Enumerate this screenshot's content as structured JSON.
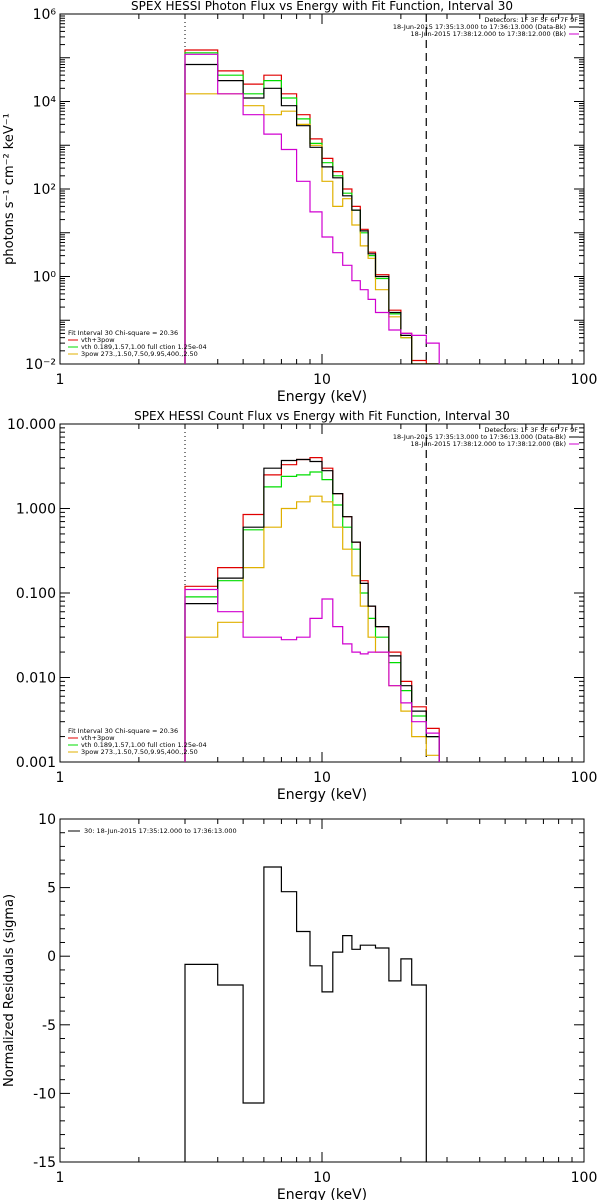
{
  "colors": {
    "black": "#000000",
    "red": "#e00000",
    "green": "#00dd00",
    "yellow": "#e0b000",
    "magenta": "#d000d0"
  },
  "chart_data": [
    {
      "type": "line",
      "title": "SPEX HESSI Photon Flux vs Energy with Fit Function, Interval 30",
      "xlabel": "Energy (keV)",
      "ylabel": "photons s⁻¹ cm⁻² keV⁻¹",
      "x_scale": "log",
      "y_scale": "log",
      "xlim": [
        1,
        100
      ],
      "ylim": [
        0.01,
        1000000
      ],
      "x_ticks": [
        "1",
        "10",
        "100"
      ],
      "y_ticks": [
        {
          "value": 0.01,
          "label": "10⁻²"
        },
        {
          "value": 1,
          "label": "10⁰"
        },
        {
          "value": 100,
          "label": "10²"
        },
        {
          "value": 10000,
          "label": "10⁴"
        },
        {
          "value": 1000000,
          "label": "10⁶"
        }
      ],
      "bin_edges": [
        3,
        3.5,
        4,
        4.5,
        5,
        5.5,
        6,
        6.5,
        7,
        7.5,
        8,
        8.5,
        9,
        10,
        11,
        12,
        13,
        14,
        15,
        16,
        18,
        20,
        22,
        25,
        28
      ],
      "ref_lines": {
        "dotted_x": 3,
        "dashed_x": 25
      },
      "legend_top": {
        "lines": [
          "Detectors: 1F 3F 5F 6F 7F 9F",
          "18-Jun-2015 17:35:13.000 to 17:36:13.000 (Data-Bk)",
          "18-Jun-2015 17:38:12.000 to 17:38:12.000 (Bk)"
        ],
        "colors": [
          "",
          "#000000",
          "#d000d0"
        ]
      },
      "legend_bottom": {
        "lines": [
          "Fit Interval 30   Chi-square = 20.36",
          "vth+3pow",
          "vth 0.189,1.57,1.00  full ction 1.25e-04",
          "3pow 273.,1.50,7.50,9.95,400.,2.50"
        ],
        "colors": [
          "",
          "#e00000",
          "#00dd00",
          "#e0b000"
        ]
      },
      "series": [
        {
          "color": "#000000",
          "values": [
            70000,
            70000,
            30000,
            30000,
            12000,
            12000,
            20000,
            20000,
            8000,
            8000,
            2800,
            2800,
            900,
            320,
            180,
            70,
            33,
            11,
            3.3,
            1.0,
            0.15,
            0.045,
            0.01,
            0.003
          ]
        },
        {
          "color": "#e00000",
          "values": [
            150000,
            150000,
            50000,
            50000,
            25000,
            25000,
            40000,
            40000,
            15000,
            15000,
            5000,
            5000,
            1400,
            500,
            250,
            100,
            40,
            12,
            3.6,
            1.1,
            0.17,
            0.05,
            0.012,
            0.004
          ]
        },
        {
          "color": "#00dd00",
          "values": [
            130000,
            130000,
            40000,
            40000,
            15000,
            15000,
            30000,
            30000,
            12000,
            12000,
            4000,
            4000,
            1100,
            400,
            200,
            80,
            33,
            10,
            3.0,
            0.9,
            0.14,
            0.04,
            0.009,
            0.003
          ]
        },
        {
          "color": "#e0b000",
          "values": [
            15000,
            15000,
            15000,
            15000,
            8000,
            8000,
            5000,
            5000,
            6000,
            6000,
            3000,
            3000,
            1000,
            150,
            40,
            60,
            15,
            5,
            2.6,
            0.5,
            0.12,
            0.04,
            0.009,
            0.003
          ]
        },
        {
          "color": "#d000d0",
          "values": [
            120000,
            120000,
            15000,
            15000,
            5000,
            5000,
            1800,
            1800,
            800,
            800,
            150,
            150,
            30,
            8,
            3.5,
            1.8,
            0.8,
            0.5,
            0.3,
            0.15,
            0.06,
            0.05,
            0.045,
            0.03
          ]
        }
      ]
    },
    {
      "type": "line",
      "title": "SPEX HESSI Count Flux vs Energy with Fit Function, Interval 30",
      "xlabel": "Energy (keV)",
      "ylabel": "",
      "x_scale": "log",
      "y_scale": "log",
      "xlim": [
        1,
        100
      ],
      "ylim": [
        0.001,
        10
      ],
      "x_ticks": [
        "1",
        "10",
        "100"
      ],
      "y_ticks": [
        {
          "value": 0.001,
          "label": "0.001"
        },
        {
          "value": 0.01,
          "label": "0.010"
        },
        {
          "value": 0.1,
          "label": "0.100"
        },
        {
          "value": 1,
          "label": "1.000"
        },
        {
          "value": 10,
          "label": "10.000"
        }
      ],
      "bin_edges": [
        3,
        4,
        5,
        6,
        7,
        8,
        9,
        10,
        11,
        12,
        13,
        14,
        15,
        16,
        18,
        20,
        22,
        25,
        28
      ],
      "ref_lines": {
        "dotted_x": 3,
        "dashed_x": 25
      },
      "legend_top": {
        "lines": [
          "Detectors: 1F 3F 5F 6F 7F 9F",
          "18-Jun-2015 17:35:13.000 to 17:36:13.000 (Data-Bk)",
          "18-Jun-2015 17:38:12.000 to 17:38:12.000 (Bk)"
        ],
        "colors": [
          "",
          "#000000",
          "#d000d0"
        ]
      },
      "legend_bottom": {
        "lines": [
          "Fit Interval 30   Chi-square = 20.36",
          "vth+3pow",
          "vth 0.189,1.57,1.00  full ction 1.25e-04",
          "3pow 273.,1.50,7.50,9.95,400.,2.50"
        ],
        "colors": [
          "",
          "#e00000",
          "#00dd00",
          "#e0b000"
        ]
      },
      "series": [
        {
          "color": "#000000",
          "values": [
            0.075,
            0.15,
            0.6,
            3.0,
            3.7,
            3.8,
            3.6,
            2.8,
            1.5,
            0.8,
            0.4,
            0.13,
            0.07,
            0.04,
            0.018,
            0.008,
            0.004,
            0.002
          ]
        },
        {
          "color": "#e00000",
          "values": [
            0.12,
            0.2,
            0.85,
            2.5,
            3.3,
            3.8,
            4.0,
            3.0,
            1.5,
            0.8,
            0.4,
            0.14,
            0.07,
            0.04,
            0.02,
            0.009,
            0.0045,
            0.0025
          ]
        },
        {
          "color": "#00dd00",
          "values": [
            0.09,
            0.14,
            0.56,
            1.8,
            2.4,
            2.5,
            2.7,
            2.2,
            1.1,
            0.6,
            0.33,
            0.1,
            0.05,
            0.03,
            0.015,
            0.007,
            0.0035,
            0.002
          ]
        },
        {
          "color": "#e0b000",
          "values": [
            0.03,
            0.045,
            0.2,
            0.6,
            1.0,
            1.2,
            1.4,
            1.2,
            0.6,
            0.33,
            0.16,
            0.07,
            0.03,
            0.02,
            0.008,
            0.004,
            0.002,
            0.0012
          ]
        },
        {
          "color": "#d000d0",
          "values": [
            0.11,
            0.06,
            0.03,
            0.03,
            0.028,
            0.03,
            0.05,
            0.085,
            0.04,
            0.025,
            0.02,
            0.019,
            0.02,
            0.02,
            0.008,
            0.005,
            0.003,
            0.0022
          ]
        }
      ]
    },
    {
      "type": "line",
      "title": "",
      "xlabel": "Energy (keV)",
      "ylabel": "Normalized Residuals (sigma)",
      "x_scale": "log",
      "y_scale": "linear",
      "xlim": [
        1,
        100
      ],
      "ylim": [
        -15,
        10
      ],
      "x_ticks": [
        "1",
        "10",
        "100"
      ],
      "y_ticks": [
        {
          "value": 10,
          "label": "10"
        },
        {
          "value": 5,
          "label": "5"
        },
        {
          "value": 0,
          "label": "0"
        },
        {
          "value": -5,
          "label": "-5"
        },
        {
          "value": -10,
          "label": "-10"
        },
        {
          "value": -15,
          "label": "-15"
        }
      ],
      "bin_edges": [
        3,
        4,
        5,
        6,
        7,
        8,
        9,
        10,
        11,
        12,
        13,
        14,
        15,
        16,
        18,
        20,
        22,
        25
      ],
      "legend_top": {
        "lines": [
          "30: 18-Jun-2015 17:35:12.000 to 17:36:13.000"
        ],
        "colors": [
          "#000000"
        ]
      },
      "series": [
        {
          "color": "#000000",
          "values": [
            -0.6,
            -2.1,
            -10.7,
            6.5,
            4.7,
            1.8,
            -0.7,
            -2.6,
            0.3,
            1.5,
            0.5,
            0.8,
            0.8,
            0.6,
            -1.8,
            -0.2,
            -2.1
          ]
        }
      ]
    }
  ]
}
